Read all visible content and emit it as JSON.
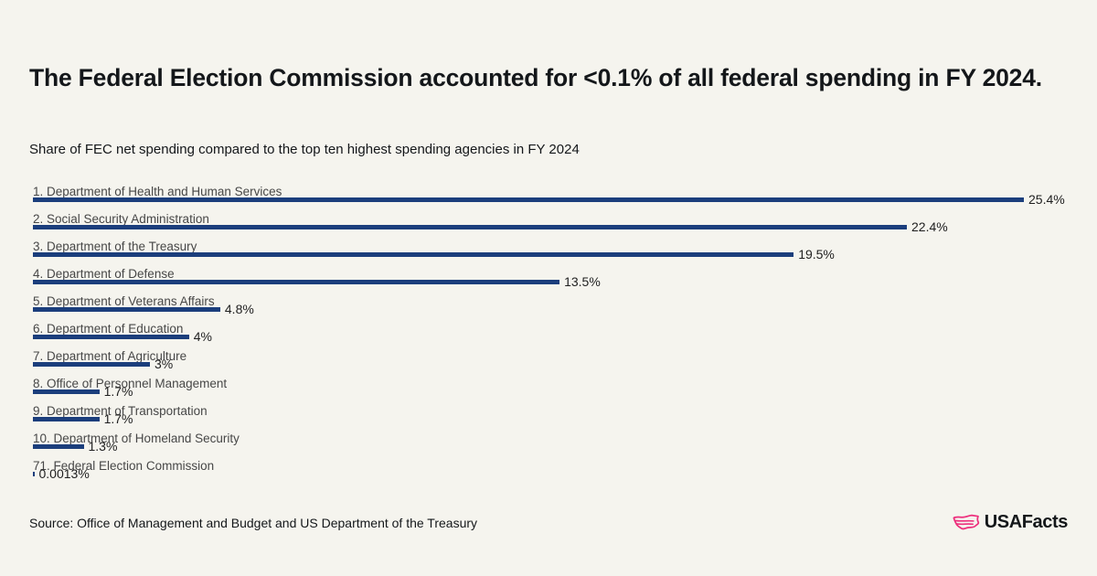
{
  "title": "The Federal Election Commission accounted for <0.1% of all federal spending in FY 2024.",
  "subtitle": "Share of FEC net spending compared to the top ten highest spending agencies in FY 2024",
  "source": "Source: Office of Management and Budget and US Department of the Treasury",
  "logo": {
    "brand": "USAFacts",
    "icon": "usa-map-icon",
    "icon_color": "#ED2E7C"
  },
  "colors": {
    "background": "#F5F4EE",
    "bar": "#1B3E7C",
    "row_label": "#474747",
    "value_label": "#1F1F1F",
    "text": "#14171A"
  },
  "chart_data": {
    "type": "bar",
    "orientation": "horizontal",
    "unit": "%",
    "title": "Share of FEC net spending compared to the top ten highest spending agencies in FY 2024",
    "xlabel": "",
    "ylabel": "",
    "xlim": [
      0,
      25.4
    ],
    "grid": false,
    "legend": false,
    "categories": [
      "1. Department of Health and Human Services",
      "2. Social Security Administration",
      "3. Department of the Treasury",
      "4. Department of Defense",
      "5. Department of Veterans Affairs",
      "6. Department of Education",
      "7. Department of Agriculture",
      "8. Office of Personnel Management",
      "9. Department of Transportation",
      "10. Department of Homeland Security",
      "71. Federal Election Commission"
    ],
    "values": [
      25.4,
      22.4,
      19.5,
      13.5,
      4.8,
      4,
      3,
      1.7,
      1.7,
      1.3,
      0.0013
    ],
    "value_labels": [
      "25.4%",
      "22.4%",
      "19.5%",
      "13.5%",
      "4.8%",
      "4%",
      "3%",
      "1.7%",
      "1.7%",
      "1.3%",
      "0.0013%"
    ]
  }
}
